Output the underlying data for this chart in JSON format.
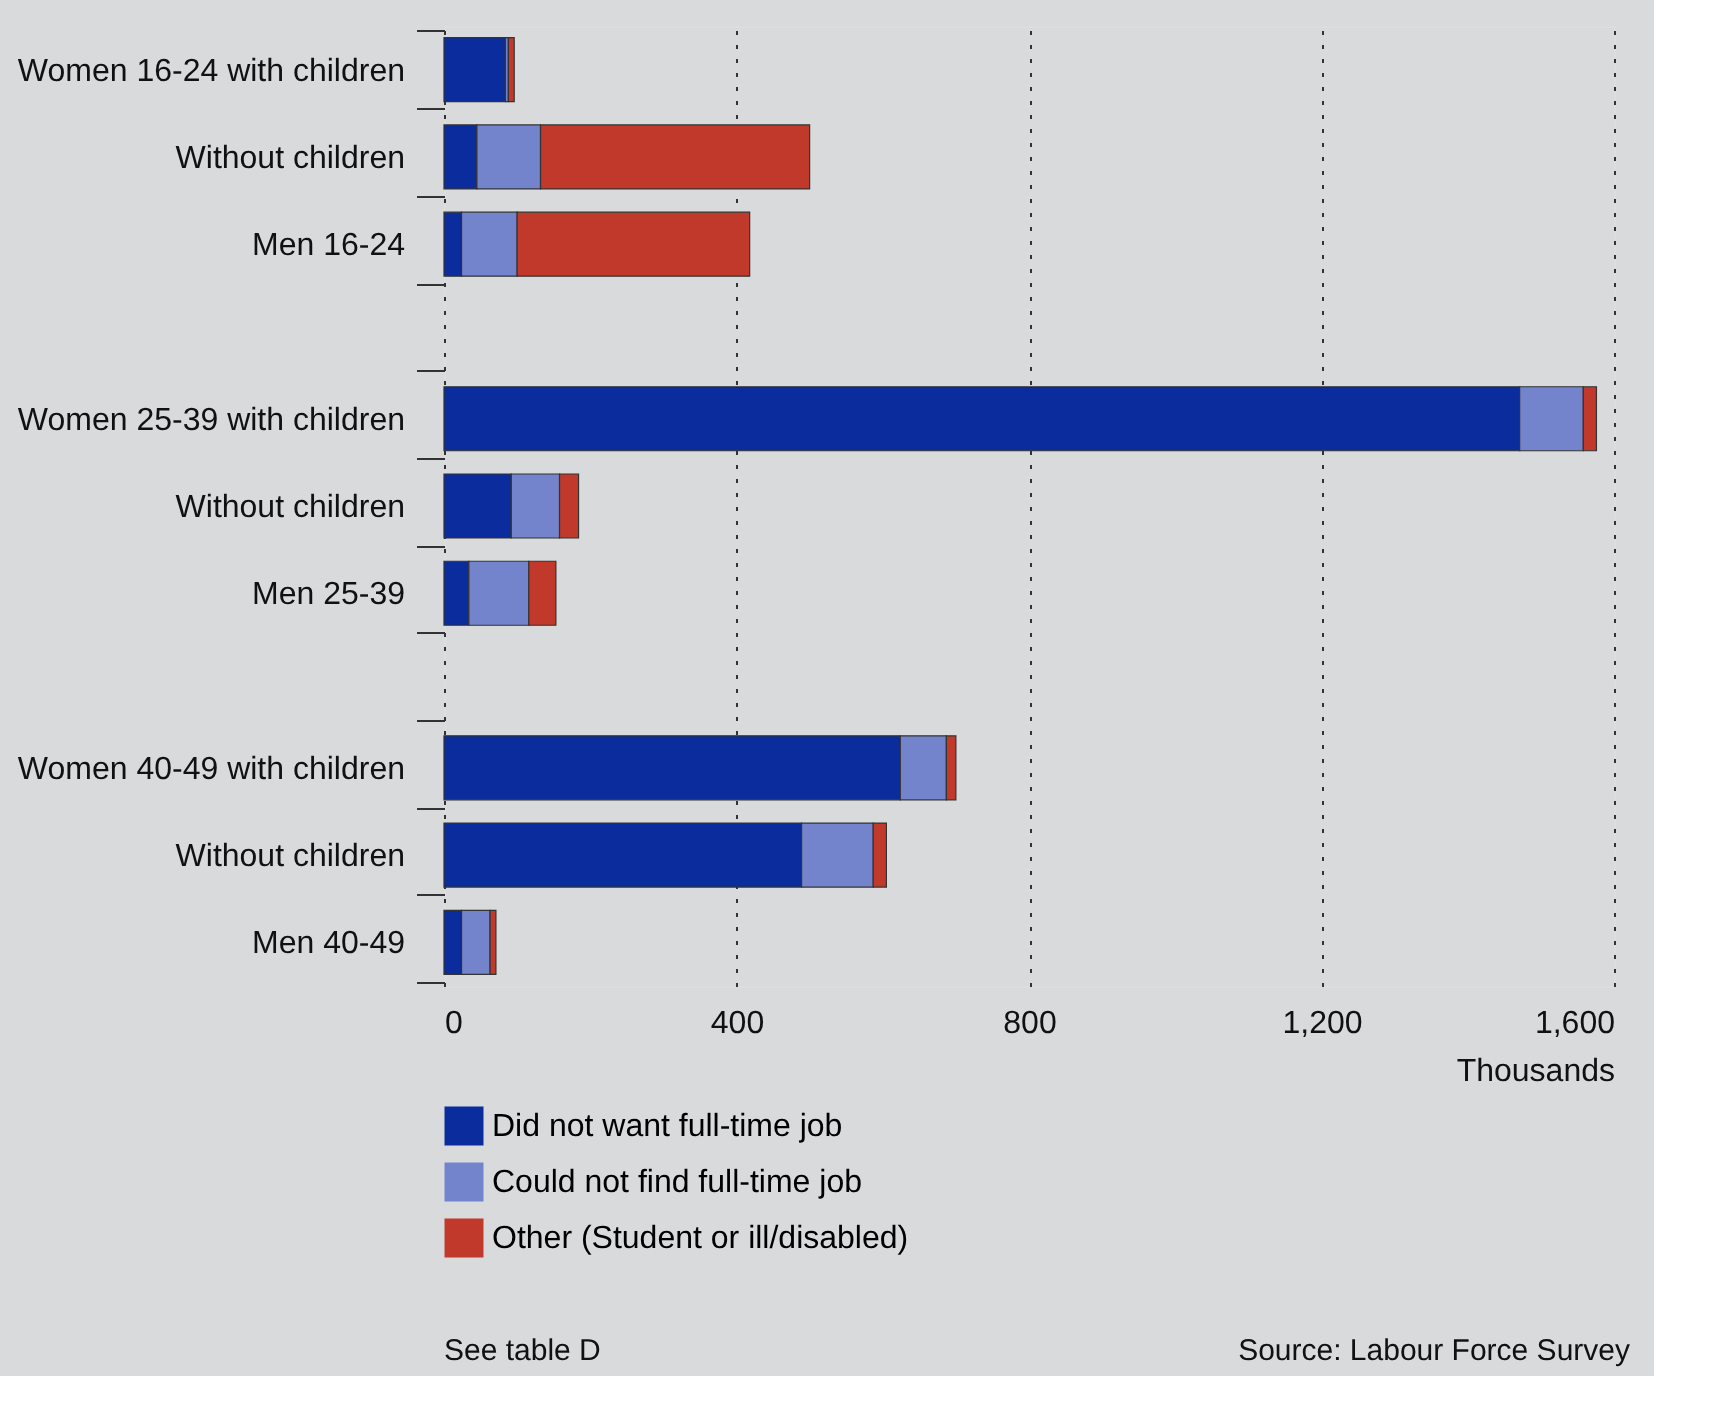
{
  "chart_data": {
    "type": "bar",
    "orientation": "horizontal",
    "stacked": true,
    "categories": [
      "Women 16-24 with children",
      "Without children",
      "Men 16-24",
      null,
      "Women 25-39 with children",
      "Without children",
      "Men 25-39",
      null,
      "Women 40-49 with children",
      "Without children",
      "Men 40-49"
    ],
    "series": [
      {
        "name": "Did not want full-time job",
        "color": "#0b2c9c",
        "values": [
          84,
          45,
          24,
          null,
          1471,
          92,
          34,
          null,
          624,
          489,
          24
        ]
      },
      {
        "name": "Could not find full-time job",
        "color": "#7484cc",
        "values": [
          4,
          87,
          76,
          null,
          87,
          66,
          82,
          null,
          63,
          98,
          39
        ]
      },
      {
        "name": "Other (Student or ill/disabled)",
        "color": "#c0392b",
        "values": [
          8,
          368,
          318,
          null,
          18,
          26,
          37,
          null,
          13,
          18,
          8
        ]
      }
    ],
    "xlim": [
      0,
      1600
    ],
    "xticks": [
      0,
      400,
      800,
      {
        "value": 1200,
        "label": "1,200"
      },
      {
        "value": 1600,
        "label": "1,600"
      }
    ],
    "xlabel": "Thousands",
    "grid": "x",
    "legend": "bottom left",
    "annotations": [
      "See table D",
      "Source: Labour Force Survey"
    ]
  }
}
